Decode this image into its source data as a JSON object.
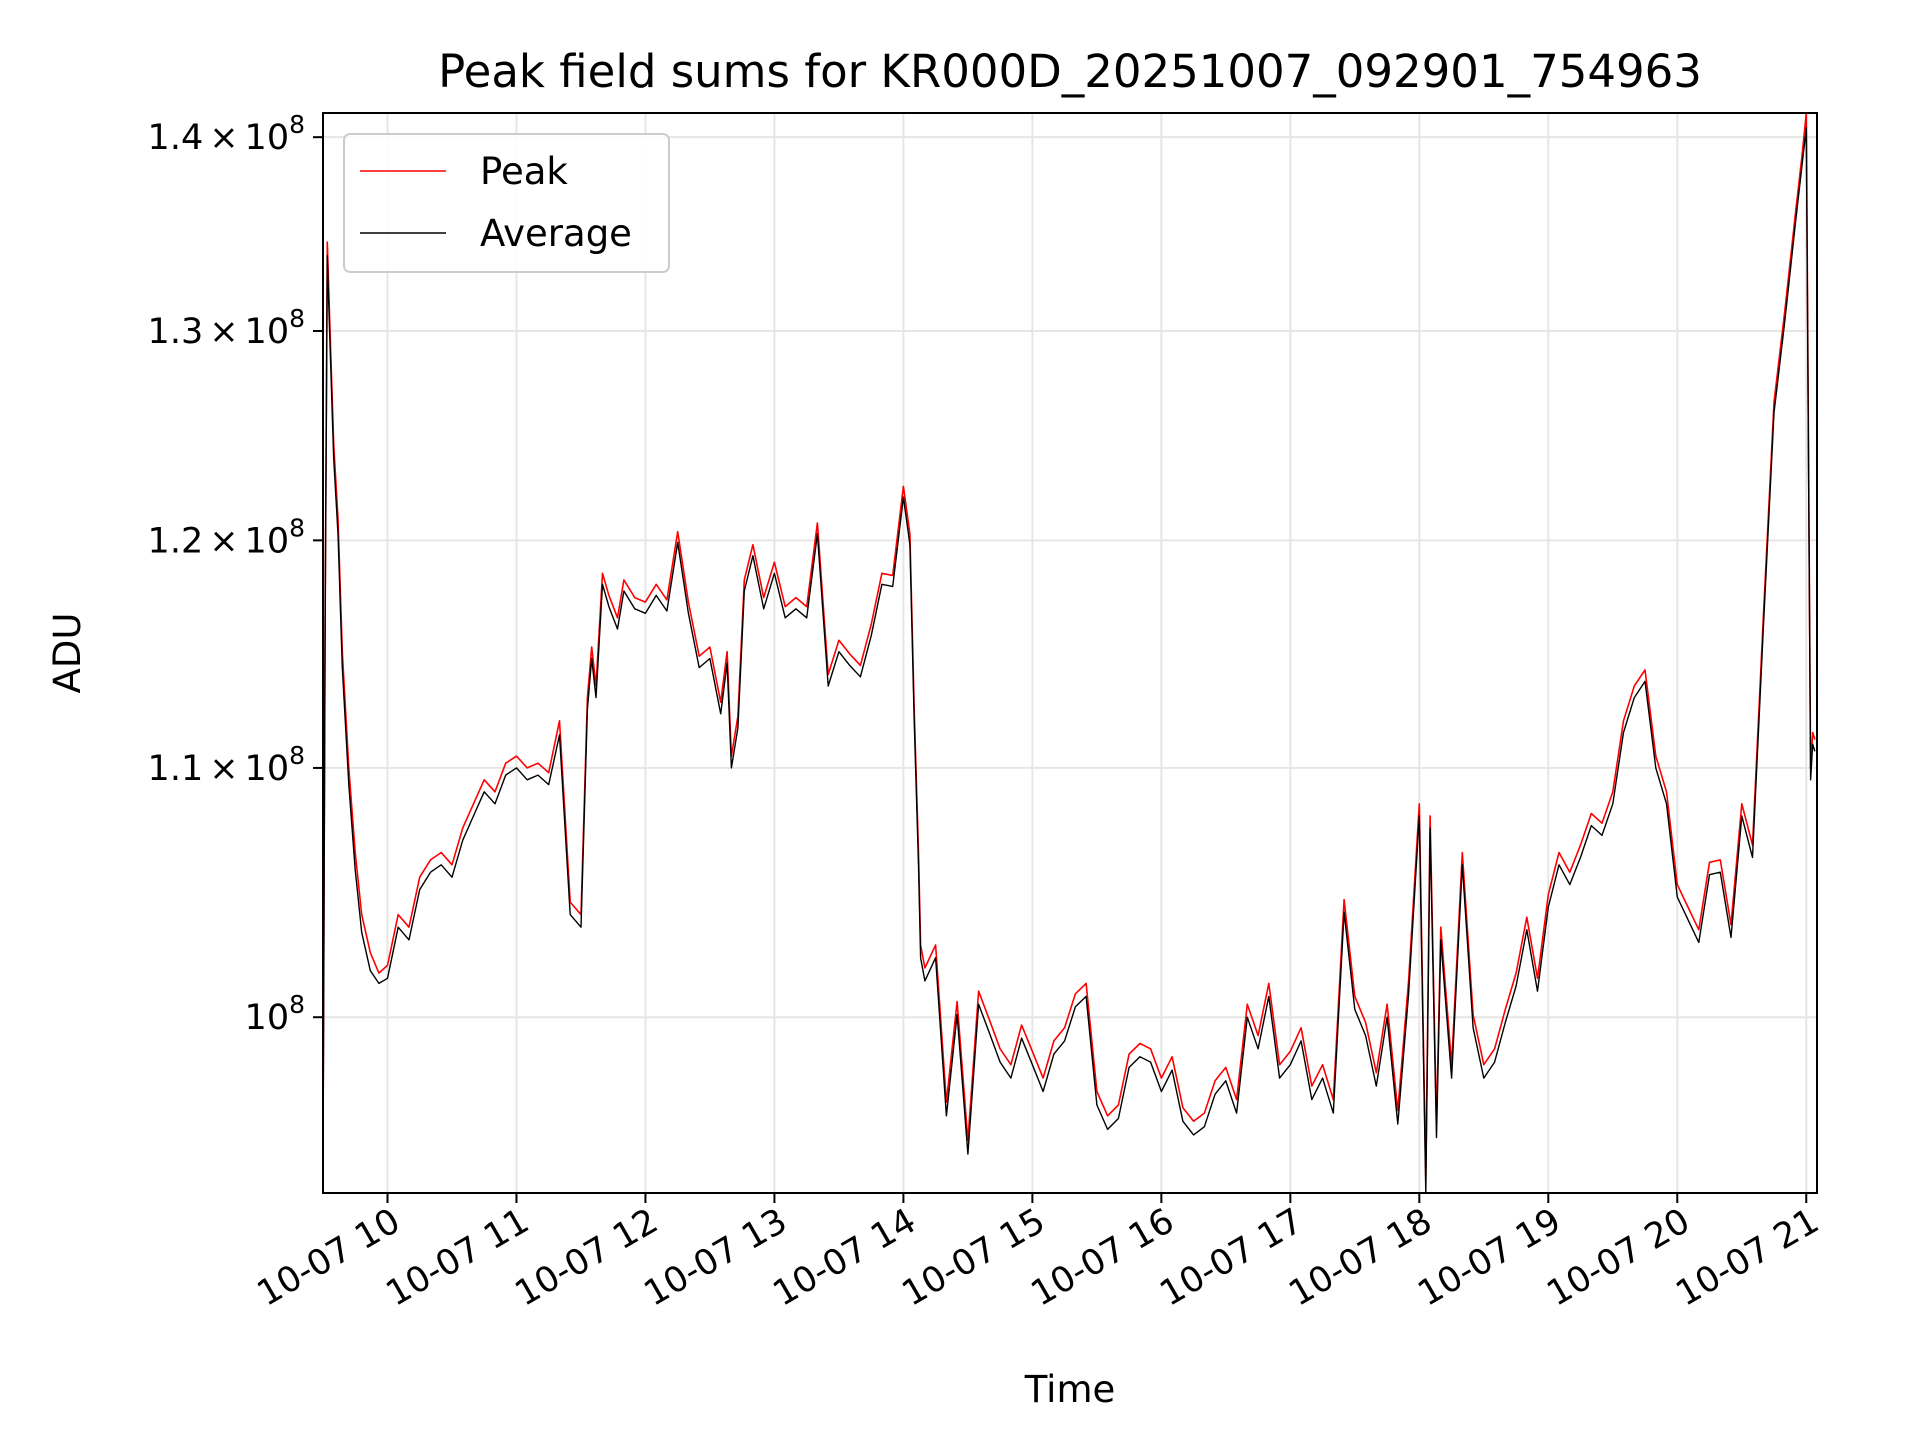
{
  "chart_data": {
    "type": "line",
    "title": "Peak field sums for KR000D_20251007_092901_754963",
    "xlabel": "Time",
    "ylabel": "ADU",
    "xlim": [
      "2025-10-07 09:30",
      "2025-10-07 21:05"
    ],
    "ylim": [
      93500000,
      141300000
    ],
    "y_scale": "log",
    "grid": true,
    "legend": "upper left",
    "x_ticks": [
      "2025-10-07 10:00",
      "2025-10-07 11:00",
      "2025-10-07 12:00",
      "2025-10-07 13:00",
      "2025-10-07 14:00",
      "2025-10-07 15:00",
      "2025-10-07 16:00",
      "2025-10-07 17:00",
      "2025-10-07 18:00",
      "2025-10-07 19:00",
      "2025-10-07 20:00",
      "2025-10-07 21:00"
    ],
    "x_tick_labels": [
      "10-07 10",
      "10-07 11",
      "10-07 12",
      "10-07 13",
      "10-07 14",
      "10-07 15",
      "10-07 16",
      "10-07 17",
      "10-07 18",
      "10-07 19",
      "10-07 20",
      "10-07 21"
    ],
    "y_ticks": [
      100000000,
      110000000,
      120000000,
      130000000,
      140000000
    ],
    "y_tick_labels": [
      {
        "mant": "",
        "exp": "8"
      },
      {
        "mant": "1.1",
        "exp": "8"
      },
      {
        "mant": "1.2",
        "exp": "8"
      },
      {
        "mant": "1.3",
        "exp": "8"
      },
      {
        "mant": "1.4",
        "exp": "8"
      }
    ],
    "series": [
      {
        "name": "Peak",
        "color": "#ff0000",
        "x": [
          "09:30",
          "09:31",
          "09:32",
          "09:33",
          "09:35",
          "09:37",
          "09:39",
          "09:42",
          "09:45",
          "09:48",
          "09:52",
          "09:56",
          "10:00",
          "10:05",
          "10:10",
          "10:15",
          "10:20",
          "10:25",
          "10:30",
          "10:35",
          "10:40",
          "10:45",
          "10:50",
          "10:55",
          "11:00",
          "11:05",
          "11:10",
          "11:15",
          "11:20",
          "11:25",
          "11:30",
          "11:33",
          "11:35",
          "11:37",
          "11:40",
          "11:43",
          "11:47",
          "11:50",
          "11:55",
          "12:00",
          "12:05",
          "12:10",
          "12:15",
          "12:20",
          "12:25",
          "12:30",
          "12:35",
          "12:38",
          "12:40",
          "12:43",
          "12:46",
          "12:50",
          "12:55",
          "13:00",
          "13:05",
          "13:10",
          "13:15",
          "13:20",
          "13:25",
          "13:30",
          "13:35",
          "13:40",
          "13:45",
          "13:50",
          "13:55",
          "14:00",
          "14:03",
          "14:05",
          "14:07",
          "14:08",
          "14:10",
          "14:15",
          "14:20",
          "14:25",
          "14:30",
          "14:35",
          "14:40",
          "14:45",
          "14:50",
          "14:55",
          "15:00",
          "15:05",
          "15:10",
          "15:15",
          "15:20",
          "15:25",
          "15:30",
          "15:35",
          "15:40",
          "15:45",
          "15:50",
          "15:55",
          "16:00",
          "16:05",
          "16:10",
          "16:15",
          "16:20",
          "16:25",
          "16:30",
          "16:35",
          "16:40",
          "16:45",
          "16:50",
          "16:55",
          "17:00",
          "17:05",
          "17:10",
          "17:15",
          "17:20",
          "17:25",
          "17:30",
          "17:35",
          "17:40",
          "17:45",
          "17:50",
          "17:55",
          "18:00",
          "18:03",
          "18:05",
          "18:08",
          "18:10",
          "18:15",
          "18:20",
          "18:25",
          "18:30",
          "18:35",
          "18:40",
          "18:45",
          "18:50",
          "18:55",
          "19:00",
          "19:05",
          "19:10",
          "19:15",
          "19:20",
          "19:25",
          "19:30",
          "19:35",
          "19:40",
          "19:45",
          "19:50",
          "19:55",
          "20:00",
          "20:05",
          "20:10",
          "20:15",
          "20:20",
          "20:25",
          "20:30",
          "20:35",
          "20:40",
          "20:45",
          "20:50",
          "20:55",
          "20:58",
          "21:00",
          "21:02",
          "21:03",
          "21:04"
        ],
        "values": [
          95000000,
          116500000,
          134500000,
          131000000,
          124500000,
          121000000,
          115000000,
          110000000,
          106500000,
          104000000,
          102500000,
          101700000,
          102000000,
          104000000,
          103500000,
          105500000,
          106200000,
          106500000,
          106000000,
          107500000,
          108500000,
          109500000,
          109000000,
          110200000,
          110500000,
          110000000,
          110200000,
          109800000,
          112000000,
          104500000,
          104000000,
          113000000,
          115200000,
          113500000,
          118500000,
          117500000,
          116500000,
          118200000,
          117400000,
          117200000,
          118000000,
          117300000,
          120400000,
          117200000,
          114800000,
          115200000,
          112800000,
          115000000,
          110500000,
          112200000,
          118200000,
          119800000,
          117400000,
          119000000,
          117000000,
          117400000,
          117000000,
          120800000,
          114000000,
          115500000,
          114900000,
          114400000,
          116200000,
          118500000,
          118400000,
          122500000,
          120300000,
          112500000,
          106500000,
          102800000,
          101900000,
          102800000,
          96800000,
          100600000,
          95400000,
          101000000,
          99900000,
          98800000,
          98200000,
          99700000,
          98700000,
          97700000,
          99100000,
          99600000,
          100900000,
          101300000,
          97200000,
          96300000,
          96700000,
          98600000,
          99000000,
          98800000,
          97700000,
          98500000,
          96600000,
          96100000,
          96400000,
          97600000,
          98100000,
          96900000,
          100500000,
          99300000,
          101300000,
          98200000,
          98700000,
          99600000,
          97400000,
          98200000,
          96900000,
          104600000,
          100800000,
          99800000,
          97900000,
          100500000,
          96500000,
          101400000,
          108500000,
          94000000,
          108000000,
          96000000,
          103500000,
          98200000,
          106500000,
          100100000,
          98200000,
          98800000,
          100300000,
          101700000,
          103900000,
          101500000,
          104800000,
          106500000,
          105700000,
          106800000,
          108100000,
          107700000,
          109000000,
          112000000,
          113500000,
          114200000,
          110500000,
          109000000,
          105200000,
          104300000,
          103400000,
          106100000,
          106200000,
          103600000,
          108500000,
          106800000,
          116500000,
          126500000,
          131000000,
          136000000,
          139000000,
          141300000,
          110000000,
          111500000,
          111200000
        ]
      },
      {
        "name": "Average",
        "color": "#000000",
        "x": [
          "09:30",
          "09:31",
          "09:32",
          "09:33",
          "09:35",
          "09:37",
          "09:39",
          "09:42",
          "09:45",
          "09:48",
          "09:52",
          "09:56",
          "10:00",
          "10:05",
          "10:10",
          "10:15",
          "10:20",
          "10:25",
          "10:30",
          "10:35",
          "10:40",
          "10:45",
          "10:50",
          "10:55",
          "11:00",
          "11:05",
          "11:10",
          "11:15",
          "11:20",
          "11:25",
          "11:30",
          "11:33",
          "11:35",
          "11:37",
          "11:40",
          "11:43",
          "11:47",
          "11:50",
          "11:55",
          "12:00",
          "12:05",
          "12:10",
          "12:15",
          "12:20",
          "12:25",
          "12:30",
          "12:35",
          "12:38",
          "12:40",
          "12:43",
          "12:46",
          "12:50",
          "12:55",
          "13:00",
          "13:05",
          "13:10",
          "13:15",
          "13:20",
          "13:25",
          "13:30",
          "13:35",
          "13:40",
          "13:45",
          "13:50",
          "13:55",
          "14:00",
          "14:03",
          "14:05",
          "14:07",
          "14:08",
          "14:10",
          "14:15",
          "14:20",
          "14:25",
          "14:30",
          "14:35",
          "14:40",
          "14:45",
          "14:50",
          "14:55",
          "15:00",
          "15:05",
          "15:10",
          "15:15",
          "15:20",
          "15:25",
          "15:30",
          "15:35",
          "15:40",
          "15:45",
          "15:50",
          "15:55",
          "16:00",
          "16:05",
          "16:10",
          "16:15",
          "16:20",
          "16:25",
          "16:30",
          "16:35",
          "16:40",
          "16:45",
          "16:50",
          "16:55",
          "17:00",
          "17:05",
          "17:10",
          "17:15",
          "17:20",
          "17:25",
          "17:30",
          "17:35",
          "17:40",
          "17:45",
          "17:50",
          "17:55",
          "18:00",
          "18:03",
          "18:05",
          "18:08",
          "18:10",
          "18:15",
          "18:20",
          "18:25",
          "18:30",
          "18:35",
          "18:40",
          "18:45",
          "18:50",
          "18:55",
          "19:00",
          "19:05",
          "19:10",
          "19:15",
          "19:20",
          "19:25",
          "19:30",
          "19:35",
          "19:40",
          "19:45",
          "19:50",
          "19:55",
          "20:00",
          "20:05",
          "20:10",
          "20:15",
          "20:20",
          "20:25",
          "20:30",
          "20:35",
          "20:40",
          "20:45",
          "20:50",
          "20:55",
          "20:58",
          "21:00",
          "21:02",
          "21:03",
          "21:04"
        ],
        "values": [
          94200000,
          115800000,
          133800000,
          130300000,
          123800000,
          120300000,
          114300000,
          109300000,
          105800000,
          103300000,
          101800000,
          101300000,
          101500000,
          103500000,
          103000000,
          105000000,
          105700000,
          106000000,
          105500000,
          107000000,
          108000000,
          109000000,
          108500000,
          109700000,
          110000000,
          109500000,
          109700000,
          109300000,
          111400000,
          104000000,
          103500000,
          112500000,
          114700000,
          113000000,
          118000000,
          117000000,
          116000000,
          117700000,
          116900000,
          116700000,
          117500000,
          116800000,
          119900000,
          116700000,
          114300000,
          114700000,
          112300000,
          114500000,
          110000000,
          111700000,
          117700000,
          119300000,
          116900000,
          118500000,
          116500000,
          116900000,
          116500000,
          120300000,
          113500000,
          115000000,
          114400000,
          113900000,
          115700000,
          118000000,
          117900000,
          122000000,
          119800000,
          112000000,
          106000000,
          102300000,
          101400000,
          102300000,
          96300000,
          100100000,
          94900000,
          100500000,
          99400000,
          98300000,
          97700000,
          99200000,
          98200000,
          97200000,
          98600000,
          99100000,
          100400000,
          100800000,
          96700000,
          95800000,
          96200000,
          98100000,
          98500000,
          98300000,
          97200000,
          98000000,
          96100000,
          95600000,
          95900000,
          97100000,
          97600000,
          96400000,
          100000000,
          98800000,
          100800000,
          97700000,
          98200000,
          99100000,
          96900000,
          97700000,
          96400000,
          104100000,
          100300000,
          99300000,
          97400000,
          100000000,
          96000000,
          100900000,
          108000000,
          93500000,
          107500000,
          95500000,
          103000000,
          97700000,
          106000000,
          99600000,
          97700000,
          98300000,
          99800000,
          101200000,
          103400000,
          101000000,
          104300000,
          106000000,
          105200000,
          106300000,
          107600000,
          107200000,
          108500000,
          111500000,
          113000000,
          113700000,
          110000000,
          108500000,
          104700000,
          103800000,
          102900000,
          105600000,
          105700000,
          103100000,
          108000000,
          106300000,
          116000000,
          126000000,
          130500000,
          135500000,
          138500000,
          140500000,
          109500000,
          111000000,
          110700000
        ]
      }
    ]
  }
}
